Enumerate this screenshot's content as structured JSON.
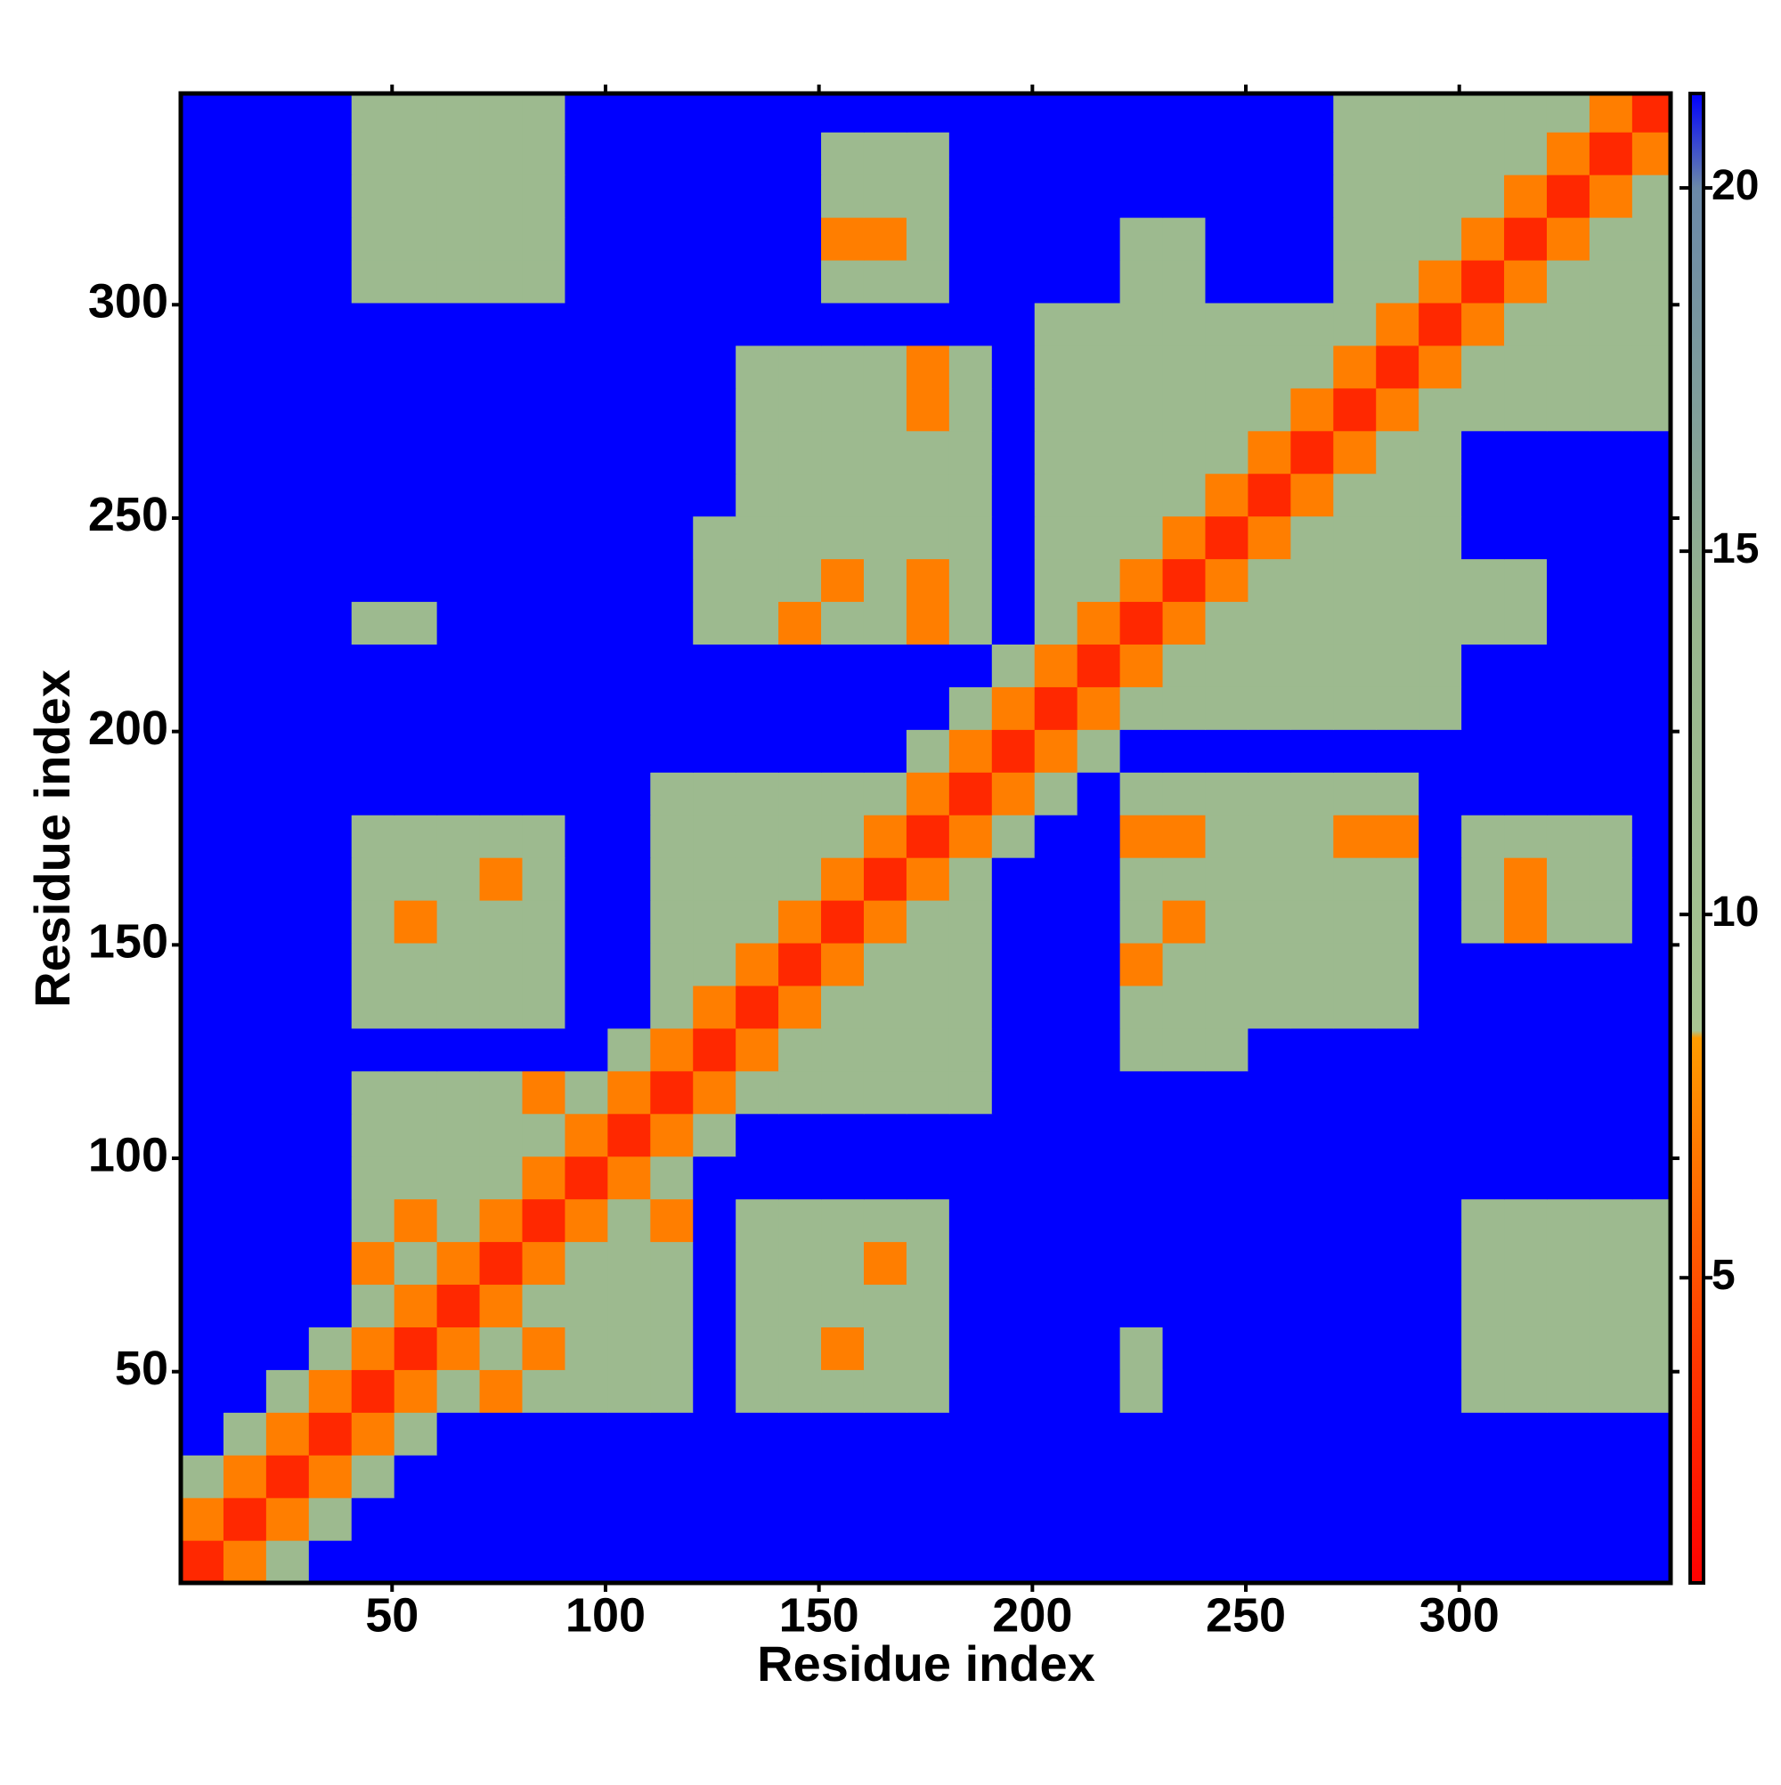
{
  "chart_data": {
    "type": "heatmap",
    "x_label": "Residue index",
    "y_label": "Residue index",
    "x": [
      5.5,
      15.5,
      25.5,
      35.5,
      45.5,
      55.5,
      65.5,
      75.5,
      85.5,
      95.5,
      105.5,
      115.5,
      125.5,
      135.5,
      145.5,
      155.5,
      165.5,
      175.5,
      185.5,
      195.5,
      205.5,
      215.5,
      225.5,
      235.5,
      245.5,
      255.5,
      265.5,
      275.5,
      285.5,
      295.5,
      305.5,
      315.5,
      325.5,
      335.5,
      345.5
    ],
    "y": [
      5.5,
      15.5,
      25.5,
      35.5,
      45.5,
      55.5,
      65.5,
      75.5,
      85.5,
      95.5,
      105.5,
      115.5,
      125.5,
      135.5,
      145.5,
      155.5,
      165.5,
      175.5,
      185.5,
      195.5,
      205.5,
      215.5,
      225.5,
      235.5,
      245.5,
      255.5,
      265.5,
      275.5,
      285.5,
      295.5,
      305.5,
      315.5,
      325.5,
      335.5,
      345.5
    ],
    "z": [
      [
        3,
        7,
        12,
        22,
        22,
        22,
        22,
        22,
        22,
        22,
        22,
        22,
        22,
        22,
        22,
        22,
        22,
        22,
        22,
        22,
        22,
        22,
        22,
        22,
        22,
        22,
        22,
        22,
        22,
        22,
        22,
        22,
        22,
        22,
        22
      ],
      [
        7,
        3,
        7,
        12,
        22,
        22,
        22,
        22,
        22,
        22,
        22,
        22,
        22,
        22,
        22,
        22,
        22,
        22,
        22,
        22,
        22,
        22,
        22,
        22,
        22,
        22,
        22,
        22,
        22,
        22,
        22,
        22,
        22,
        22,
        22
      ],
      [
        12,
        7,
        3,
        7,
        12,
        22,
        22,
        22,
        22,
        22,
        22,
        22,
        22,
        22,
        22,
        22,
        22,
        22,
        22,
        22,
        22,
        22,
        22,
        22,
        22,
        22,
        22,
        22,
        22,
        22,
        22,
        22,
        22,
        22,
        22
      ],
      [
        22,
        12,
        7,
        3,
        7,
        12,
        22,
        22,
        22,
        22,
        22,
        22,
        22,
        22,
        22,
        22,
        22,
        22,
        22,
        22,
        22,
        22,
        22,
        22,
        22,
        22,
        22,
        22,
        22,
        22,
        22,
        22,
        22,
        22,
        22
      ],
      [
        22,
        22,
        12,
        7,
        3,
        7,
        12,
        7,
        12,
        12,
        12,
        12,
        22,
        12,
        12,
        12,
        12,
        12,
        22,
        22,
        22,
        22,
        12,
        22,
        22,
        22,
        22,
        22,
        22,
        22,
        12,
        12,
        12,
        12,
        12
      ],
      [
        22,
        22,
        22,
        12,
        7,
        3,
        7,
        12,
        7,
        12,
        12,
        12,
        22,
        12,
        12,
        7,
        12,
        12,
        22,
        22,
        22,
        22,
        12,
        22,
        22,
        22,
        22,
        22,
        22,
        22,
        12,
        12,
        12,
        12,
        12
      ],
      [
        22,
        22,
        22,
        22,
        12,
        7,
        3,
        7,
        12,
        12,
        12,
        12,
        22,
        12,
        12,
        12,
        12,
        12,
        22,
        22,
        22,
        22,
        22,
        22,
        22,
        22,
        22,
        22,
        22,
        22,
        12,
        12,
        12,
        12,
        12
      ],
      [
        22,
        22,
        22,
        22,
        7,
        12,
        7,
        3,
        7,
        12,
        12,
        12,
        22,
        12,
        12,
        12,
        7,
        12,
        22,
        22,
        22,
        22,
        22,
        22,
        22,
        22,
        22,
        22,
        22,
        22,
        12,
        12,
        12,
        12,
        12
      ],
      [
        22,
        22,
        22,
        22,
        12,
        7,
        12,
        7,
        3,
        7,
        12,
        7,
        22,
        12,
        12,
        12,
        12,
        12,
        22,
        22,
        22,
        22,
        22,
        22,
        22,
        22,
        22,
        22,
        22,
        22,
        12,
        12,
        12,
        12,
        12
      ],
      [
        22,
        22,
        22,
        22,
        12,
        12,
        12,
        12,
        7,
        3,
        7,
        12,
        22,
        22,
        22,
        22,
        22,
        22,
        22,
        22,
        22,
        22,
        22,
        22,
        22,
        22,
        22,
        22,
        22,
        22,
        22,
        22,
        22,
        22,
        22
      ],
      [
        22,
        22,
        22,
        22,
        12,
        12,
        12,
        12,
        12,
        7,
        3,
        7,
        12,
        22,
        22,
        22,
        22,
        22,
        22,
        22,
        22,
        22,
        22,
        22,
        22,
        22,
        22,
        22,
        22,
        22,
        22,
        22,
        22,
        22,
        22
      ],
      [
        22,
        22,
        22,
        22,
        12,
        12,
        12,
        12,
        7,
        12,
        7,
        3,
        7,
        12,
        12,
        12,
        12,
        12,
        12,
        22,
        22,
        22,
        22,
        22,
        22,
        22,
        22,
        22,
        22,
        22,
        22,
        22,
        22,
        22,
        22
      ],
      [
        22,
        22,
        22,
        22,
        22,
        22,
        22,
        22,
        22,
        22,
        12,
        7,
        3,
        7,
        12,
        12,
        12,
        12,
        12,
        22,
        22,
        22,
        12,
        12,
        12,
        22,
        22,
        22,
        22,
        22,
        22,
        22,
        22,
        22,
        22
      ],
      [
        22,
        22,
        22,
        22,
        12,
        12,
        12,
        12,
        12,
        22,
        22,
        12,
        7,
        3,
        7,
        12,
        12,
        12,
        12,
        22,
        22,
        22,
        12,
        12,
        12,
        12,
        12,
        12,
        12,
        22,
        22,
        22,
        22,
        22,
        22
      ],
      [
        22,
        22,
        22,
        22,
        12,
        12,
        12,
        12,
        12,
        22,
        22,
        12,
        12,
        7,
        3,
        7,
        12,
        12,
        12,
        22,
        22,
        22,
        7,
        12,
        12,
        12,
        12,
        12,
        12,
        22,
        22,
        22,
        22,
        22,
        22
      ],
      [
        22,
        22,
        22,
        22,
        12,
        7,
        12,
        12,
        12,
        22,
        22,
        12,
        12,
        12,
        7,
        3,
        7,
        12,
        12,
        22,
        22,
        22,
        12,
        7,
        12,
        12,
        12,
        12,
        12,
        22,
        12,
        7,
        12,
        12,
        22
      ],
      [
        22,
        22,
        22,
        22,
        12,
        12,
        12,
        7,
        12,
        22,
        22,
        12,
        12,
        12,
        12,
        7,
        3,
        7,
        12,
        22,
        22,
        22,
        12,
        12,
        12,
        12,
        12,
        12,
        12,
        22,
        12,
        7,
        12,
        12,
        22
      ],
      [
        22,
        22,
        22,
        22,
        12,
        12,
        12,
        12,
        12,
        22,
        22,
        12,
        12,
        12,
        12,
        12,
        7,
        3,
        7,
        12,
        22,
        22,
        7,
        7,
        12,
        12,
        12,
        7,
        7,
        22,
        12,
        12,
        12,
        12,
        22
      ],
      [
        22,
        22,
        22,
        22,
        22,
        22,
        22,
        22,
        22,
        22,
        22,
        12,
        12,
        12,
        12,
        12,
        12,
        7,
        3,
        7,
        12,
        22,
        12,
        12,
        12,
        12,
        12,
        12,
        12,
        22,
        22,
        22,
        22,
        22,
        22
      ],
      [
        22,
        22,
        22,
        22,
        22,
        22,
        22,
        22,
        22,
        22,
        22,
        22,
        22,
        22,
        22,
        22,
        22,
        12,
        7,
        3,
        7,
        12,
        22,
        22,
        22,
        22,
        22,
        22,
        22,
        22,
        22,
        22,
        22,
        22,
        22
      ],
      [
        22,
        22,
        22,
        22,
        22,
        22,
        22,
        22,
        22,
        22,
        22,
        22,
        22,
        22,
        22,
        22,
        22,
        22,
        12,
        7,
        3,
        7,
        12,
        12,
        12,
        12,
        12,
        12,
        12,
        12,
        22,
        22,
        22,
        22,
        22
      ],
      [
        22,
        22,
        22,
        22,
        22,
        22,
        22,
        22,
        22,
        22,
        22,
        22,
        22,
        22,
        22,
        22,
        22,
        22,
        22,
        12,
        7,
        3,
        7,
        12,
        12,
        12,
        12,
        12,
        12,
        12,
        22,
        22,
        22,
        22,
        22
      ],
      [
        22,
        22,
        22,
        22,
        12,
        12,
        22,
        22,
        22,
        22,
        22,
        22,
        12,
        12,
        7,
        12,
        12,
        7,
        12,
        22,
        12,
        7,
        3,
        7,
        12,
        12,
        12,
        12,
        12,
        12,
        12,
        12,
        22,
        22,
        22
      ],
      [
        22,
        22,
        22,
        22,
        22,
        22,
        22,
        22,
        22,
        22,
        22,
        22,
        12,
        12,
        12,
        7,
        12,
        7,
        12,
        22,
        12,
        12,
        7,
        3,
        7,
        12,
        12,
        12,
        12,
        12,
        12,
        12,
        22,
        22,
        22
      ],
      [
        22,
        22,
        22,
        22,
        22,
        22,
        22,
        22,
        22,
        22,
        22,
        22,
        12,
        12,
        12,
        12,
        12,
        12,
        12,
        22,
        12,
        12,
        12,
        7,
        3,
        7,
        12,
        12,
        12,
        12,
        22,
        22,
        22,
        22,
        22
      ],
      [
        22,
        22,
        22,
        22,
        22,
        22,
        22,
        22,
        22,
        22,
        22,
        22,
        22,
        12,
        12,
        12,
        12,
        12,
        12,
        22,
        12,
        12,
        12,
        12,
        7,
        3,
        7,
        12,
        12,
        12,
        22,
        22,
        22,
        22,
        22
      ],
      [
        22,
        22,
        22,
        22,
        22,
        22,
        22,
        22,
        22,
        22,
        22,
        22,
        22,
        12,
        12,
        12,
        12,
        12,
        12,
        22,
        12,
        12,
        12,
        12,
        12,
        7,
        3,
        7,
        12,
        12,
        22,
        22,
        22,
        22,
        22
      ],
      [
        22,
        22,
        22,
        22,
        22,
        22,
        22,
        22,
        22,
        22,
        22,
        22,
        22,
        12,
        12,
        12,
        12,
        7,
        12,
        22,
        12,
        12,
        12,
        12,
        12,
        12,
        7,
        3,
        7,
        12,
        12,
        12,
        12,
        12,
        12
      ],
      [
        22,
        22,
        22,
        22,
        22,
        22,
        22,
        22,
        22,
        22,
        22,
        22,
        22,
        12,
        12,
        12,
        12,
        7,
        12,
        22,
        12,
        12,
        12,
        12,
        12,
        12,
        12,
        7,
        3,
        7,
        12,
        12,
        12,
        12,
        12
      ],
      [
        22,
        22,
        22,
        22,
        22,
        22,
        22,
        22,
        22,
        22,
        22,
        22,
        22,
        22,
        22,
        22,
        22,
        22,
        22,
        22,
        12,
        12,
        12,
        12,
        12,
        12,
        12,
        12,
        7,
        3,
        7,
        12,
        12,
        12,
        12
      ],
      [
        22,
        22,
        22,
        22,
        12,
        12,
        12,
        12,
        12,
        22,
        22,
        22,
        22,
        22,
        22,
        12,
        12,
        12,
        22,
        22,
        22,
        22,
        12,
        12,
        22,
        22,
        22,
        12,
        12,
        7,
        3,
        7,
        12,
        12,
        12
      ],
      [
        22,
        22,
        22,
        22,
        12,
        12,
        12,
        12,
        12,
        22,
        22,
        22,
        22,
        22,
        22,
        7,
        7,
        12,
        22,
        22,
        22,
        22,
        12,
        12,
        22,
        22,
        22,
        12,
        12,
        12,
        7,
        3,
        7,
        12,
        12
      ],
      [
        22,
        22,
        22,
        22,
        12,
        12,
        12,
        12,
        12,
        22,
        22,
        22,
        22,
        22,
        22,
        12,
        12,
        12,
        22,
        22,
        22,
        22,
        22,
        22,
        22,
        22,
        22,
        12,
        12,
        12,
        12,
        7,
        3,
        7,
        12
      ],
      [
        22,
        22,
        22,
        22,
        12,
        12,
        12,
        12,
        12,
        22,
        22,
        22,
        22,
        22,
        22,
        12,
        12,
        12,
        22,
        22,
        22,
        22,
        22,
        22,
        22,
        22,
        22,
        12,
        12,
        12,
        12,
        12,
        7,
        3,
        7
      ],
      [
        22,
        22,
        22,
        22,
        12,
        12,
        12,
        12,
        12,
        22,
        22,
        22,
        22,
        22,
        22,
        22,
        22,
        22,
        22,
        22,
        22,
        22,
        22,
        22,
        22,
        22,
        22,
        12,
        12,
        12,
        12,
        12,
        12,
        7,
        3
      ]
    ],
    "xlim": [
      0.5,
      349.5
    ],
    "ylim": [
      0.5,
      349.5
    ],
    "xticks": [
      50,
      100,
      150,
      200,
      250,
      300
    ],
    "yticks": [
      50,
      100,
      150,
      200,
      250,
      300
    ],
    "zlim": [
      0.8,
      21.3
    ],
    "zticks": [
      5,
      10,
      15,
      20
    ],
    "colorscale": [
      [
        0.8,
        "#ff0000"
      ],
      [
        4,
        "#ff3a00"
      ],
      [
        8.3,
        "#ff9c00"
      ],
      [
        8.4,
        "#a8c592"
      ],
      [
        14,
        "#97b48d"
      ],
      [
        20,
        "#6a88a8"
      ],
      [
        21.3,
        "#0000ff"
      ]
    ]
  }
}
